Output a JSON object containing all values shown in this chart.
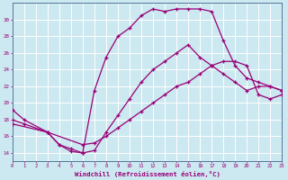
{
  "bg_color": "#cce8f0",
  "grid_color": "#ffffff",
  "line_color": "#990077",
  "xlim": [
    0,
    23
  ],
  "ylim": [
    13,
    32
  ],
  "xticks": [
    0,
    1,
    2,
    3,
    4,
    5,
    6,
    7,
    8,
    9,
    10,
    11,
    12,
    13,
    14,
    15,
    16,
    17,
    18,
    19,
    20,
    21,
    22,
    23
  ],
  "yticks": [
    14,
    16,
    18,
    20,
    22,
    24,
    26,
    28,
    30
  ],
  "xlabel": "Windchill (Refroidissement éolien,°C)",
  "curve1_x": [
    0,
    1,
    3,
    4,
    5,
    6,
    7,
    8,
    9,
    10,
    11,
    12,
    13,
    14,
    15,
    16,
    17,
    18,
    19,
    20,
    21,
    22,
    23
  ],
  "curve1_y": [
    19.2,
    18.0,
    16.5,
    15.0,
    14.2,
    14.0,
    21.5,
    25.5,
    28.0,
    29.0,
    30.5,
    31.3,
    31.0,
    31.3,
    31.3,
    31.3,
    31.0,
    27.5,
    24.5,
    23.0,
    22.5,
    22.0,
    21.5
  ],
  "curve2_x": [
    0,
    1,
    3,
    4,
    5,
    6,
    7,
    8,
    9,
    10,
    11,
    12,
    13,
    14,
    15,
    16,
    17,
    18,
    19,
    20,
    21,
    22,
    23
  ],
  "curve2_y": [
    18.0,
    17.5,
    16.5,
    15.0,
    14.5,
    14.0,
    14.3,
    16.5,
    18.5,
    20.5,
    22.5,
    24.0,
    25.0,
    26.0,
    27.0,
    25.5,
    24.5,
    23.5,
    22.5,
    21.5,
    22.0,
    22.0,
    21.5
  ],
  "curve3_x": [
    0,
    3,
    6,
    7,
    8,
    9,
    10,
    11,
    12,
    13,
    14,
    15,
    16,
    17,
    18,
    19,
    20,
    21,
    22,
    23
  ],
  "curve3_y": [
    17.5,
    16.5,
    15.0,
    15.2,
    16.0,
    17.0,
    18.0,
    19.0,
    20.0,
    21.0,
    22.0,
    22.5,
    23.5,
    24.5,
    25.0,
    25.0,
    24.5,
    21.0,
    20.5,
    21.0
  ]
}
